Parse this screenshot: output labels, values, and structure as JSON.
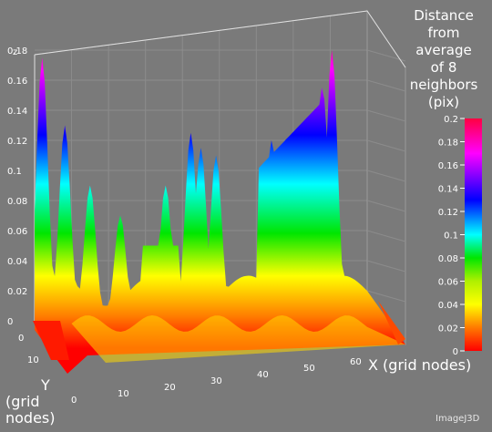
{
  "chart_data": {
    "type": "surface3d",
    "title": "",
    "legend_title": [
      "Distance",
      "from",
      "average",
      "of 8",
      "neighbors",
      "(pix)"
    ],
    "xlabel": "X (grid nodes)",
    "ylabel": [
      "Y",
      "(grid",
      "nodes)"
    ],
    "zlabel": "z",
    "z_ticks": [
      "0",
      "0.02",
      "0.04",
      "0.06",
      "0.08",
      "0.1",
      "0.12",
      "0.14",
      "0.16",
      "0.18"
    ],
    "x_ticks": [
      "0",
      "10",
      "20",
      "30",
      "40",
      "50",
      "60"
    ],
    "y_ticks": [
      "0",
      "10"
    ],
    "colorbar_ticks": [
      "0",
      "0.02",
      "0.04",
      "0.06",
      "0.08",
      "0.1",
      "0.12",
      "0.14",
      "0.16",
      "0.18",
      "0.2"
    ],
    "zlim": [
      0,
      0.2
    ],
    "xlim": [
      0,
      66
    ],
    "ylim": [
      0,
      20
    ],
    "colormap": [
      "#ff0000",
      "#ff7a00",
      "#ffff00",
      "#00e600",
      "#00ffff",
      "#0000ff",
      "#ff00ff",
      "#ff0040"
    ],
    "peaks": [
      {
        "x": 1.5,
        "z": 0.175
      },
      {
        "x": 6,
        "z": 0.13
      },
      {
        "x": 11,
        "z": 0.09
      },
      {
        "x": 17,
        "z": 0.07
      },
      {
        "x": 26,
        "z": 0.09
      },
      {
        "x": 31,
        "z": 0.125
      },
      {
        "x": 33,
        "z": 0.115
      },
      {
        "x": 36,
        "z": 0.11
      },
      {
        "x": 47,
        "z": 0.12
      },
      {
        "x": 57,
        "z": 0.155
      },
      {
        "x": 59,
        "z": 0.18
      }
    ]
  },
  "watermark": "ImageJ3D"
}
